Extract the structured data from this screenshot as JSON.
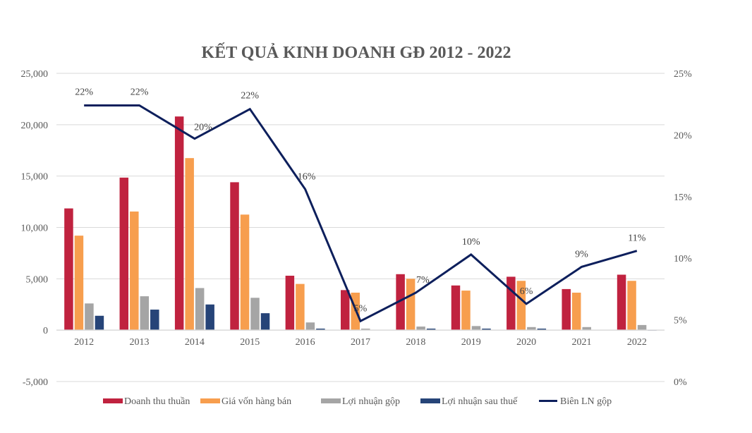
{
  "chart_data": {
    "type": "bar",
    "title": "KẾT QUẢ KINH DOANH GĐ 2012 - 2022",
    "xlabel": "",
    "ylabel": "",
    "categories": [
      "2012",
      "2013",
      "2014",
      "2015",
      "2016",
      "2017",
      "2018",
      "2019",
      "2020",
      "2021",
      "2022"
    ],
    "ylim": [
      -5000,
      25000
    ],
    "y_ticks": [
      -5000,
      0,
      5000,
      10000,
      15000,
      20000,
      25000
    ],
    "y_tick_labels": [
      "-5,000",
      "0",
      "5,000",
      "10,000",
      "15,000",
      "20,000",
      "25,000"
    ],
    "y2lim": [
      0,
      25
    ],
    "y2_ticks": [
      0,
      5,
      10,
      15,
      20,
      25
    ],
    "y2_tick_labels": [
      "0%",
      "5%",
      "10%",
      "15%",
      "20%",
      "25%"
    ],
    "grid": true,
    "legend_position": "bottom",
    "series": [
      {
        "name": "Doanh thu thuần",
        "kind": "bar",
        "color": "#C0223F",
        "values": [
          11850,
          14850,
          20800,
          14400,
          5300,
          3900,
          5450,
          4350,
          5200,
          4000,
          5400
        ]
      },
      {
        "name": "Giá vốn hàng bán",
        "kind": "bar",
        "color": "#F79E4E",
        "values": [
          9200,
          11550,
          16750,
          11250,
          4500,
          3650,
          5000,
          3850,
          4800,
          3650,
          4800
        ]
      },
      {
        "name": "Lợi nhuận gộp",
        "kind": "bar",
        "color": "#A5A5A5",
        "values": [
          2600,
          3300,
          4100,
          3150,
          750,
          150,
          350,
          400,
          300,
          300,
          500
        ]
      },
      {
        "name": "Lợi nhuận sau thuế",
        "kind": "bar",
        "color": "#264478",
        "values": [
          1400,
          2000,
          2500,
          1650,
          150,
          0,
          150,
          150,
          150,
          0,
          -50
        ]
      },
      {
        "name": "Biên LN gộp",
        "kind": "line",
        "axis": "right",
        "color": "#0D1F5C",
        "values": [
          22.4,
          22.4,
          19.7,
          22.1,
          15.6,
          4.9,
          7.2,
          10.3,
          6.3,
          9.3,
          10.6
        ],
        "labels": [
          "22%",
          "22%",
          "20%",
          "22%",
          "16%",
          "5%",
          "7%",
          "10%",
          "6%",
          "9%",
          "11%"
        ]
      }
    ]
  }
}
